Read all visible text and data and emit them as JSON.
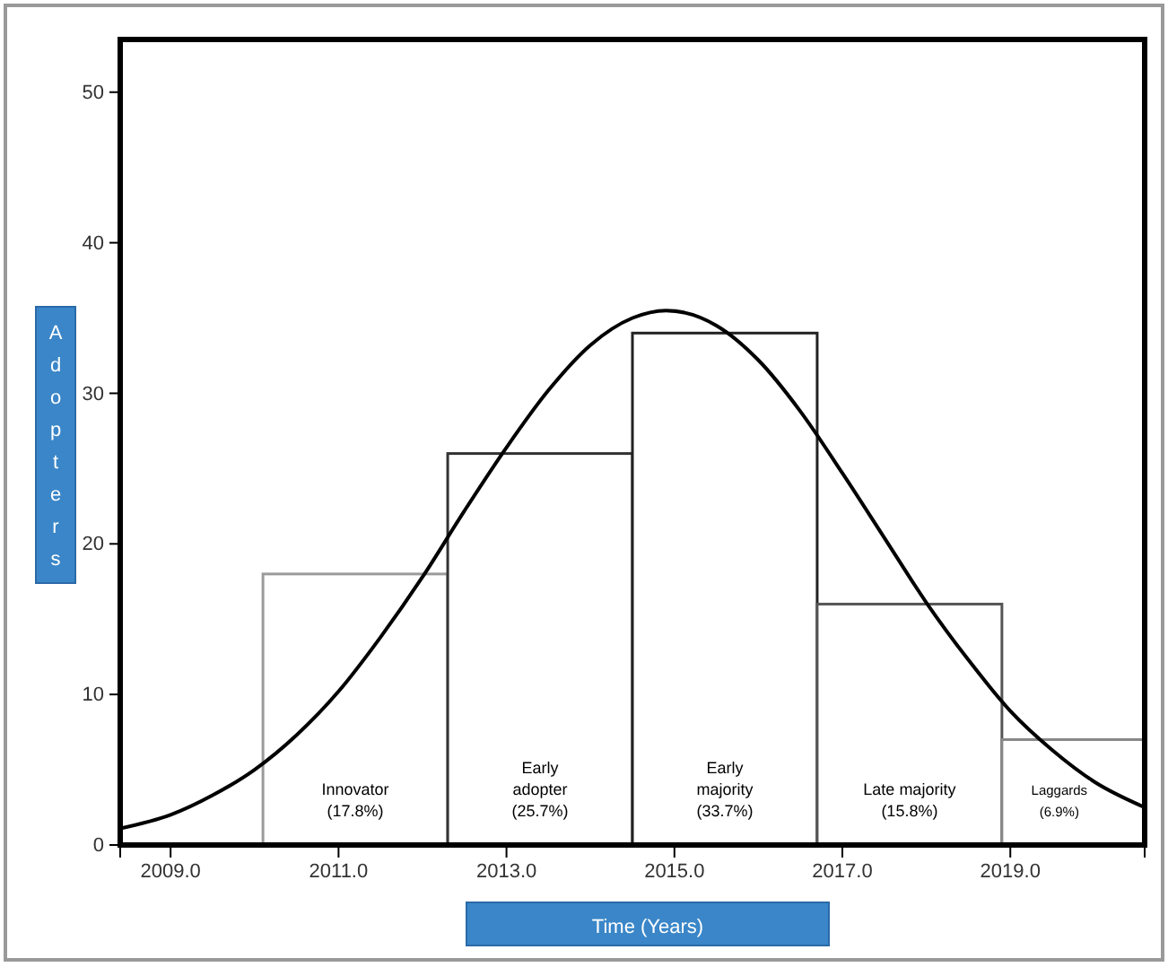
{
  "chart_data": {
    "type": "histogram",
    "xlabel": "Time (Years)",
    "ylabel": "Adopters",
    "bins": [
      2010.1,
      2012.3,
      2014.5,
      2016.7,
      2018.9,
      2020.6
    ],
    "values": [
      18,
      26,
      34,
      16,
      7
    ],
    "colors": [
      "#9a9a9a",
      "#333333",
      "#222222",
      "#555555",
      "#888888"
    ],
    "series": [
      {
        "type": "line",
        "color": "#000000",
        "x": [
          2008.4,
          2009,
          2009.5,
          2010,
          2010.5,
          2011,
          2011.5,
          2012,
          2012.5,
          2013,
          2013.5,
          2014,
          2014.5,
          2014.9,
          2015.5,
          2016,
          2016.5,
          2017,
          2017.5,
          2018,
          2018.5,
          2019,
          2019.5,
          2020,
          2020.6
        ],
        "values": [
          1.1,
          2.0,
          3.3,
          5.0,
          7.3,
          10.2,
          13.8,
          17.8,
          22.2,
          26.4,
          30.2,
          33.2,
          35.0,
          35.5,
          34.5,
          32.2,
          28.8,
          24.7,
          20.4,
          16.1,
          12.3,
          8.9,
          6.3,
          4.2,
          2.5
        ]
      }
    ],
    "xlim": [
      2008.4,
      2020.6
    ],
    "ylim": [
      0,
      53.5
    ],
    "xticks": [
      {
        "value": 2009,
        "label": "2009.0"
      },
      {
        "value": 2011,
        "label": "2011.0"
      },
      {
        "value": 2013,
        "label": "2013.0"
      },
      {
        "value": 2015,
        "label": "2015.0"
      },
      {
        "value": 2017,
        "label": "2017.0"
      },
      {
        "value": 2019,
        "label": "2019.0"
      }
    ],
    "yticks": [
      0,
      10,
      20,
      30,
      40,
      50
    ],
    "grid": false,
    "annotations": [
      "Innovator\n(17.8%)",
      "Early\nadopter\n(25.7%)",
      "Early\nmajority\n(33.7%)",
      "Late majority\n(15.8%)",
      "Laggards\n(6.9%)"
    ]
  }
}
